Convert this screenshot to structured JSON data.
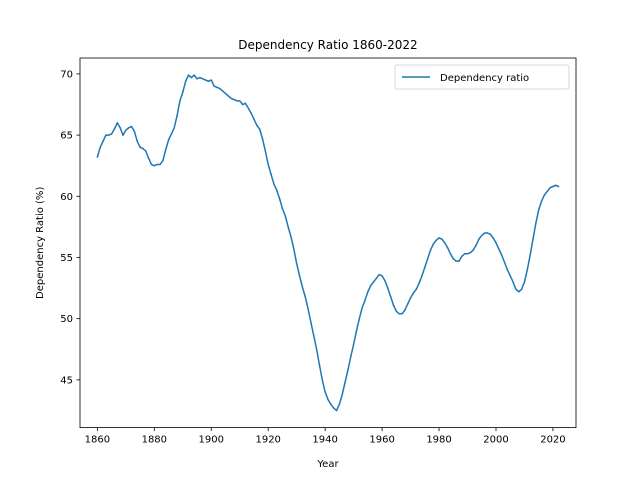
{
  "chart_data": {
    "type": "line",
    "title": "Dependency Ratio 1860-2022",
    "xlabel": "Year",
    "ylabel": "Dependency Ratio (%)",
    "xlim": [
      1853.9,
      2028.1
    ],
    "ylim": [
      41.1,
      71.3
    ],
    "xticks": [
      1860,
      1880,
      1900,
      1920,
      1940,
      1960,
      1980,
      2000,
      2020
    ],
    "yticks": [
      45,
      50,
      55,
      60,
      65,
      70
    ],
    "grid": false,
    "legend_position": "top-right",
    "series": [
      {
        "name": "Dependency ratio",
        "color": "#1f77b4",
        "x": [
          1860,
          1861,
          1862,
          1863,
          1864,
          1865,
          1866,
          1867,
          1868,
          1869,
          1870,
          1871,
          1872,
          1873,
          1874,
          1875,
          1876,
          1877,
          1878,
          1879,
          1880,
          1881,
          1882,
          1883,
          1884,
          1885,
          1886,
          1887,
          1888,
          1889,
          1890,
          1891,
          1892,
          1893,
          1894,
          1895,
          1896,
          1897,
          1898,
          1899,
          1900,
          1901,
          1902,
          1903,
          1904,
          1905,
          1906,
          1907,
          1908,
          1909,
          1910,
          1911,
          1912,
          1913,
          1914,
          1915,
          1916,
          1917,
          1918,
          1919,
          1920,
          1921,
          1922,
          1923,
          1924,
          1925,
          1926,
          1927,
          1928,
          1929,
          1930,
          1931,
          1932,
          1933,
          1934,
          1935,
          1936,
          1937,
          1938,
          1939,
          1940,
          1941,
          1942,
          1943,
          1944,
          1945,
          1946,
          1947,
          1948,
          1949,
          1950,
          1951,
          1952,
          1953,
          1954,
          1955,
          1956,
          1957,
          1958,
          1959,
          1960,
          1961,
          1962,
          1963,
          1964,
          1965,
          1966,
          1967,
          1968,
          1969,
          1970,
          1971,
          1972,
          1973,
          1974,
          1975,
          1976,
          1977,
          1978,
          1979,
          1980,
          1981,
          1982,
          1983,
          1984,
          1985,
          1986,
          1987,
          1988,
          1989,
          1990,
          1991,
          1992,
          1993,
          1994,
          1995,
          1996,
          1997,
          1998,
          1999,
          2000,
          2001,
          2002,
          2003,
          2004,
          2005,
          2006,
          2007,
          2008,
          2009,
          2010,
          2011,
          2012,
          2013,
          2014,
          2015,
          2016,
          2017,
          2018,
          2019,
          2020,
          2021,
          2022
        ],
        "y": [
          63.2,
          64.0,
          64.5,
          65.0,
          65.0,
          65.1,
          65.5,
          66.0,
          65.6,
          65.0,
          65.4,
          65.6,
          65.7,
          65.3,
          64.5,
          64.0,
          63.9,
          63.7,
          63.1,
          62.6,
          62.5,
          62.6,
          62.6,
          62.9,
          63.8,
          64.6,
          65.1,
          65.6,
          66.6,
          67.8,
          68.5,
          69.4,
          69.9,
          69.7,
          69.9,
          69.6,
          69.7,
          69.6,
          69.5,
          69.4,
          69.5,
          69.0,
          68.9,
          68.8,
          68.6,
          68.4,
          68.2,
          68.0,
          67.9,
          67.8,
          67.8,
          67.5,
          67.6,
          67.2,
          66.8,
          66.3,
          65.8,
          65.5,
          64.7,
          63.7,
          62.6,
          61.8,
          61.0,
          60.5,
          59.8,
          59.0,
          58.4,
          57.5,
          56.7,
          55.7,
          54.5,
          53.5,
          52.6,
          51.8,
          50.8,
          49.7,
          48.6,
          47.5,
          46.2,
          45.0,
          44.0,
          43.4,
          43.0,
          42.7,
          42.5,
          43.0,
          43.8,
          44.8,
          45.8,
          46.9,
          47.9,
          49.0,
          50.0,
          50.9,
          51.5,
          52.2,
          52.7,
          53.0,
          53.3,
          53.6,
          53.5,
          53.1,
          52.5,
          51.8,
          51.1,
          50.6,
          50.4,
          50.4,
          50.7,
          51.2,
          51.7,
          52.1,
          52.4,
          52.9,
          53.5,
          54.2,
          54.9,
          55.6,
          56.1,
          56.4,
          56.6,
          56.5,
          56.2,
          55.8,
          55.3,
          54.9,
          54.7,
          54.7,
          55.1,
          55.3,
          55.3,
          55.4,
          55.6,
          56.0,
          56.5,
          56.8,
          57.0,
          57.0,
          56.9,
          56.6,
          56.2,
          55.7,
          55.2,
          54.6,
          54.0,
          53.5,
          53.0,
          52.4,
          52.2,
          52.4,
          53.0,
          54.0,
          55.2,
          56.5,
          57.8,
          58.9,
          59.6,
          60.1,
          60.4,
          60.7,
          60.8,
          60.9,
          60.8
        ]
      }
    ]
  }
}
